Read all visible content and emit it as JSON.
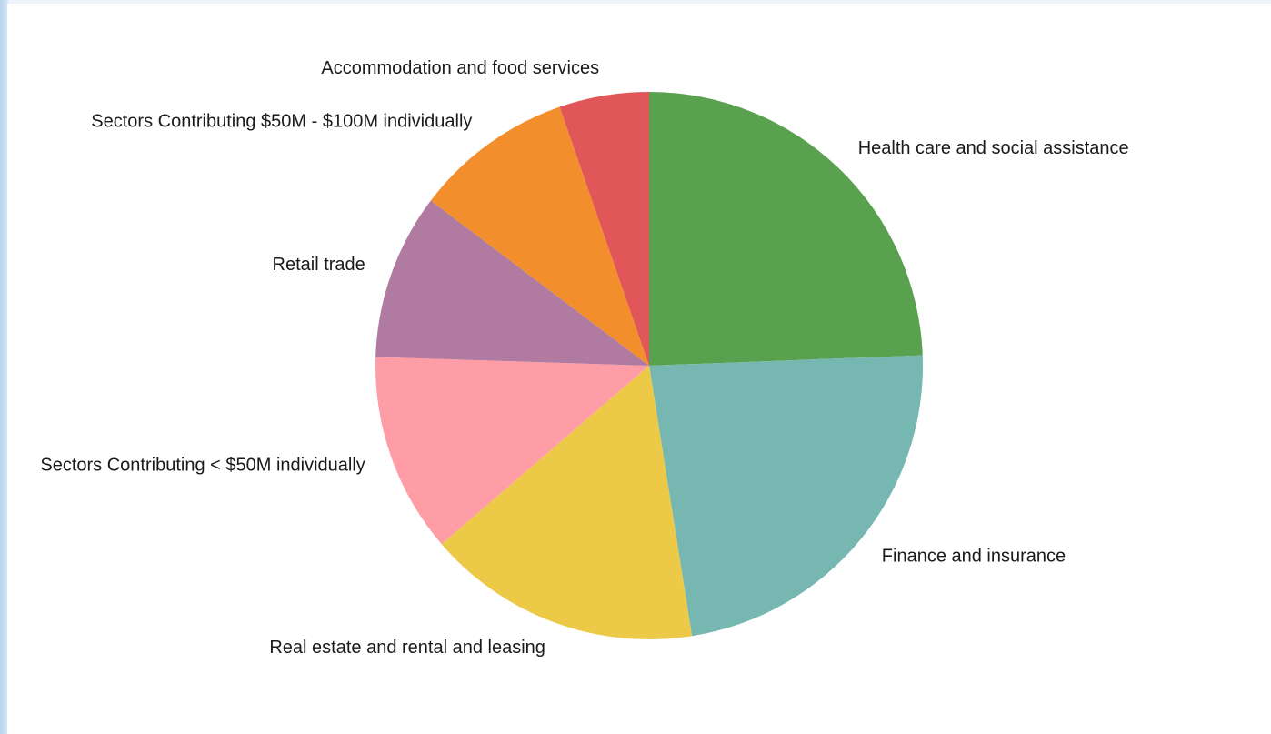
{
  "chart_data": {
    "type": "pie",
    "title": "",
    "start_angle_deg": 90,
    "direction": "clockwise",
    "legend": "none",
    "slices": [
      {
        "label": "Health care and social assistance",
        "value": 24.4,
        "color": "#59a14f"
      },
      {
        "label": "Finance and insurance",
        "value": 23.1,
        "color": "#76b7b2"
      },
      {
        "label": "Real estate and rental and leasing",
        "value": 16.2,
        "color": "#edc948"
      },
      {
        "label": "Sectors Contributing < $50M individually",
        "value": 11.8,
        "color": "#ff9da7"
      },
      {
        "label": "Retail trade",
        "value": 9.8,
        "color": "#b07aa1"
      },
      {
        "label": "Sectors Contributing $50M - $100M individually",
        "value": 9.4,
        "color": "#f28e2b"
      },
      {
        "label": "Accommodation and food services",
        "value": 5.3,
        "color": "#e15759"
      }
    ]
  }
}
